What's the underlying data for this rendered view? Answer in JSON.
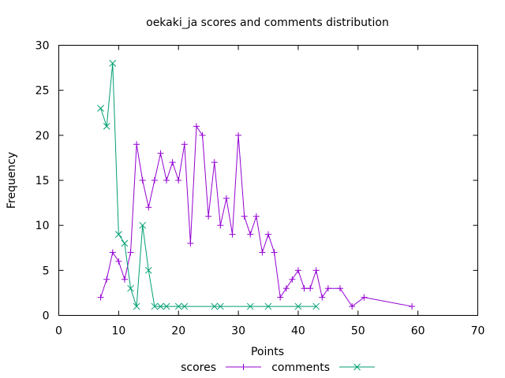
{
  "chart_data": {
    "type": "line",
    "title": "oekaki_ja scores and comments distribution",
    "xlabel": "Points",
    "ylabel": "Frequency",
    "xlim": [
      0,
      70
    ],
    "ylim": [
      0,
      30
    ],
    "xticks": [
      0,
      10,
      20,
      30,
      40,
      50,
      60,
      70
    ],
    "yticks": [
      0,
      5,
      10,
      15,
      20,
      25,
      30
    ],
    "grid": false,
    "legend_position": "bottom-center",
    "series": [
      {
        "name": "scores",
        "color": "#9400d3",
        "marker": "plus",
        "points": [
          [
            7,
            2
          ],
          [
            8,
            4
          ],
          [
            9,
            7
          ],
          [
            10,
            6
          ],
          [
            11,
            4
          ],
          [
            12,
            7
          ],
          [
            13,
            19
          ],
          [
            14,
            15
          ],
          [
            15,
            12
          ],
          [
            16,
            15
          ],
          [
            17,
            18
          ],
          [
            18,
            15
          ],
          [
            19,
            17
          ],
          [
            20,
            15
          ],
          [
            21,
            19
          ],
          [
            22,
            8
          ],
          [
            23,
            21
          ],
          [
            24,
            20
          ],
          [
            25,
            11
          ],
          [
            26,
            17
          ],
          [
            27,
            10
          ],
          [
            28,
            13
          ],
          [
            29,
            9
          ],
          [
            30,
            20
          ],
          [
            31,
            11
          ],
          [
            32,
            9
          ],
          [
            33,
            11
          ],
          [
            34,
            7
          ],
          [
            35,
            9
          ],
          [
            36,
            7
          ],
          [
            37,
            2
          ],
          [
            38,
            3
          ],
          [
            39,
            4
          ],
          [
            40,
            5
          ],
          [
            41,
            3
          ],
          [
            42,
            3
          ],
          [
            43,
            5
          ],
          [
            44,
            2
          ],
          [
            45,
            3
          ],
          [
            47,
            3
          ],
          [
            49,
            1
          ],
          [
            51,
            2
          ],
          [
            59,
            1
          ]
        ]
      },
      {
        "name": "comments",
        "color": "#009e73",
        "marker": "cross",
        "points": [
          [
            7,
            23
          ],
          [
            8,
            21
          ],
          [
            9,
            28
          ],
          [
            10,
            9
          ],
          [
            11,
            8
          ],
          [
            12,
            3
          ],
          [
            13,
            1
          ],
          [
            14,
            10
          ],
          [
            15,
            5
          ],
          [
            16,
            1
          ],
          [
            17,
            1
          ],
          [
            18,
            1
          ],
          [
            20,
            1
          ],
          [
            21,
            1
          ],
          [
            26,
            1
          ],
          [
            27,
            1
          ],
          [
            32,
            1
          ],
          [
            35,
            1
          ],
          [
            40,
            1
          ],
          [
            43,
            1
          ]
        ]
      }
    ]
  }
}
